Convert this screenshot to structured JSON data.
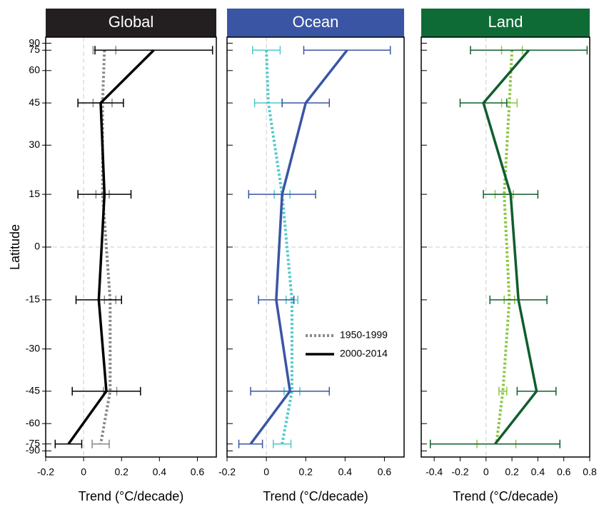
{
  "chart_data": [
    {
      "type": "errorline",
      "title": "Global",
      "header_color": "#231f20",
      "ylabel": "Latitude",
      "xlabel": "Trend (°C/decade)",
      "y": [
        75,
        45,
        15,
        -15,
        -45,
        -75
      ],
      "yscale": "sine",
      "ylim": [
        -90,
        90
      ],
      "yticks": [
        90,
        75,
        60,
        45,
        30,
        15,
        0,
        -15,
        -30,
        -45,
        -60,
        -75,
        -90
      ],
      "xlim": [
        -0.2,
        0.7
      ],
      "xticks": [
        -0.2,
        0,
        0.2,
        0.4,
        0.6
      ],
      "zero_lines": true,
      "series": [
        {
          "name": "1950-1999",
          "color": "#888888",
          "style": "dotted",
          "values": [
            0.11,
            0.1,
            0.1,
            0.14,
            0.14,
            0.09
          ],
          "errors": [
            0.06,
            0.05,
            0.035,
            0.03,
            0.035,
            0.045
          ]
        },
        {
          "name": "2000-2014",
          "color": "#000000",
          "style": "solid",
          "values": [
            0.37,
            0.09,
            0.11,
            0.08,
            0.12,
            -0.08
          ],
          "errors": [
            0.31,
            0.12,
            0.14,
            0.12,
            0.18,
            0.07
          ]
        }
      ]
    },
    {
      "type": "errorline",
      "title": "Ocean",
      "header_color": "#3a55a4",
      "xlabel": "Trend (°C/decade)",
      "y": [
        75,
        45,
        15,
        -15,
        -45,
        -75
      ],
      "yscale": "sine",
      "ylim": [
        -90,
        90
      ],
      "yticks": [
        90,
        75,
        60,
        45,
        30,
        15,
        0,
        -15,
        -30,
        -45,
        -60,
        -75,
        -90
      ],
      "xlim": [
        -0.2,
        0.7
      ],
      "xticks": [
        -0.2,
        0,
        0.2,
        0.4,
        0.6
      ],
      "zero_lines": true,
      "legend": {
        "position": "lower right",
        "colors": [
          "#888888",
          "#000000"
        ]
      },
      "series": [
        {
          "name": "1950-1999",
          "color": "#4fc9c9",
          "style": "dotted",
          "values": [
            0.0,
            0.01,
            0.08,
            0.13,
            0.13,
            0.08
          ],
          "errors": [
            0.07,
            0.07,
            0.04,
            0.03,
            0.04,
            0.045
          ]
        },
        {
          "name": "2000-2014",
          "color": "#3a55a4",
          "style": "solid",
          "values": [
            0.41,
            0.2,
            0.08,
            0.05,
            0.12,
            -0.08
          ],
          "errors": [
            0.22,
            0.12,
            0.17,
            0.09,
            0.2,
            0.06
          ]
        }
      ]
    },
    {
      "type": "errorline",
      "title": "Land",
      "header_color": "#0f6b35",
      "xlabel": "Trend (°C/decade)",
      "y": [
        75,
        45,
        15,
        -15,
        -45,
        -75
      ],
      "yscale": "sine",
      "ylim": [
        -90,
        90
      ],
      "yticks": [
        90,
        75,
        60,
        45,
        30,
        15,
        0,
        -15,
        -30,
        -45,
        -60,
        -75,
        -90
      ],
      "xlim": [
        -0.5,
        0.8
      ],
      "xticks": [
        -0.4,
        -0.2,
        0,
        0.2,
        0.4,
        0.6,
        0.8
      ],
      "zero_lines": true,
      "series": [
        {
          "name": "1950-1999",
          "color": "#8dc63f",
          "style": "dotted",
          "values": [
            0.2,
            0.18,
            0.14,
            0.18,
            0.13,
            0.08
          ],
          "errors": [
            0.08,
            0.06,
            0.07,
            0.04,
            0.03,
            0.15
          ]
        },
        {
          "name": "2000-2014",
          "color": "#0f5e2e",
          "style": "solid",
          "values": [
            0.33,
            -0.02,
            0.19,
            0.25,
            0.39,
            0.07
          ],
          "errors": [
            0.45,
            0.18,
            0.21,
            0.22,
            0.15,
            0.5
          ]
        }
      ]
    }
  ]
}
